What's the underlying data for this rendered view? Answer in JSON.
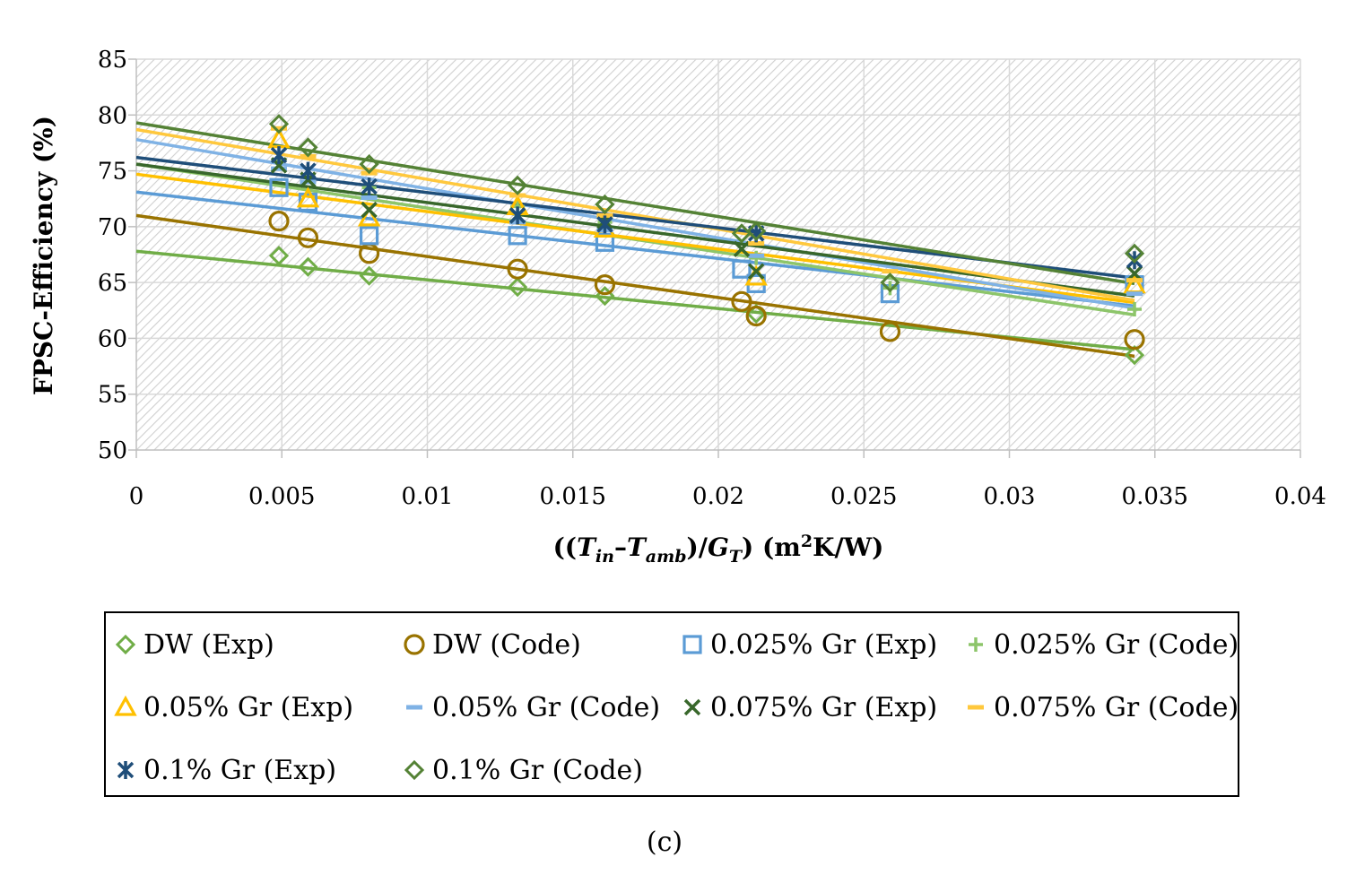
{
  "chart_data": {
    "type": "scatter",
    "title": "",
    "xlabel_parts": [
      "((",
      "T",
      "in",
      "–",
      "T",
      "amb",
      ")/",
      "G",
      "T",
      ") (m",
      "2",
      "K/W)"
    ],
    "ylabel": "FPSC-Efficiency (%)",
    "xlim": [
      0,
      0.04
    ],
    "ylim": [
      50,
      85
    ],
    "xticks": [
      0,
      0.005,
      0.01,
      0.015,
      0.02,
      0.025,
      0.03,
      0.035,
      0.04
    ],
    "xtick_labels": [
      "0",
      "0.005",
      "0.01",
      "0.015",
      "0.02",
      "0.025",
      "0.03",
      "0.035",
      "0.04"
    ],
    "yticks": [
      50,
      55,
      60,
      65,
      70,
      75,
      80,
      85
    ],
    "ytick_labels": [
      "50",
      "55",
      "60",
      "65",
      "70",
      "75",
      "80",
      "85"
    ],
    "grid": true,
    "background": "hatched",
    "caption": "(c)",
    "legend_position": "bottom",
    "series": [
      {
        "name": "DW (Exp)",
        "marker": "diamond",
        "color": "#70ad47",
        "x": [
          0.0049,
          0.0059,
          0.008,
          0.0131,
          0.0161,
          0.0213,
          0.0343
        ],
        "y": [
          67.4,
          66.4,
          65.6,
          64.6,
          63.8,
          62.2,
          58.5
        ],
        "fit": [
          67.8,
          59.0
        ]
      },
      {
        "name": "DW (Code)",
        "marker": "circle",
        "color": "#997300",
        "x": [
          0.0049,
          0.0059,
          0.008,
          0.0131,
          0.0161,
          0.0208,
          0.0213,
          0.0259,
          0.0343
        ],
        "y": [
          70.5,
          69.0,
          67.6,
          66.2,
          64.8,
          63.3,
          62.0,
          60.6,
          59.9
        ],
        "fit": [
          71.0,
          58.4
        ]
      },
      {
        "name": "0.025% Gr (Exp)",
        "marker": "square",
        "color": "#5b9bd5",
        "x": [
          0.0049,
          0.0059,
          0.008,
          0.0131,
          0.0161,
          0.0208,
          0.0213,
          0.0259,
          0.0343
        ],
        "y": [
          73.5,
          72.2,
          69.2,
          69.2,
          68.6,
          66.2,
          64.9,
          64.0,
          64.8
        ],
        "fit": [
          73.1,
          62.9
        ]
      },
      {
        "name": "0.025% Gr (Code)",
        "marker": "plus",
        "color": "#8dc56a",
        "x": [
          0.0049,
          0.0059,
          0.008,
          0.0131,
          0.0161,
          0.0213,
          0.0259,
          0.0343
        ],
        "y": [
          76.0,
          74.6,
          73.5,
          71.8,
          70.4,
          67.2,
          64.5,
          62.6
        ],
        "fit": [
          75.6,
          62.1
        ]
      },
      {
        "name": "0.05% Gr (Exp)",
        "marker": "triangle",
        "color": "#ffc000",
        "x": [
          0.0049,
          0.0059,
          0.008,
          0.0131,
          0.0161,
          0.0213,
          0.0343
        ],
        "y": [
          77.8,
          72.5,
          70.8,
          71.8,
          69.8,
          65.5,
          64.8
        ],
        "fit": [
          74.7,
          63.2
        ]
      },
      {
        "name": "0.05% Gr (Code)",
        "marker": "dash",
        "color": "#7fb2e5",
        "x": [
          0.0049,
          0.0059,
          0.008,
          0.0131,
          0.0161,
          0.0213,
          0.0343
        ],
        "y": [
          75.2,
          74.0,
          72.6,
          70.4,
          69.7,
          67.4,
          64.0
        ],
        "fit": [
          77.8,
          62.7
        ]
      },
      {
        "name": "0.075% Gr (Exp)",
        "marker": "x",
        "color": "#38672b",
        "x": [
          0.0049,
          0.0059,
          0.008,
          0.0131,
          0.0161,
          0.0208,
          0.0213,
          0.0343
        ],
        "y": [
          75.5,
          74.2,
          71.5,
          71.0,
          70.5,
          68.0,
          66.0,
          65.8
        ],
        "fit": [
          75.6,
          63.8
        ]
      },
      {
        "name": "0.075% Gr (Code)",
        "marker": "dash",
        "color": "#ffc83d",
        "x": [
          0.0049,
          0.0059,
          0.008,
          0.0131,
          0.0161,
          0.0213,
          0.0259,
          0.0343
        ],
        "y": [
          78.8,
          76.3,
          74.8,
          72.8,
          71.0,
          68.5,
          66.0,
          65.2
        ],
        "fit": [
          78.7,
          63.4
        ]
      },
      {
        "name": "0.1% Gr (Exp)",
        "marker": "asterisk",
        "color": "#1f4e79",
        "x": [
          0.0049,
          0.0059,
          0.008,
          0.0131,
          0.0161,
          0.0213,
          0.0343
        ],
        "y": [
          76.4,
          75.0,
          73.6,
          71.0,
          70.2,
          69.4,
          67.0
        ],
        "fit": [
          76.2,
          65.4
        ]
      },
      {
        "name": "0.1% Gr (Code)",
        "marker": "diamond",
        "color": "#548235",
        "x": [
          0.0049,
          0.0059,
          0.008,
          0.0131,
          0.0161,
          0.0208,
          0.0213,
          0.0259,
          0.0343
        ],
        "y": [
          79.2,
          77.1,
          75.6,
          73.7,
          72.0,
          69.4,
          69.6,
          65.0,
          67.6
        ],
        "fit": [
          79.3,
          64.9
        ]
      }
    ]
  }
}
